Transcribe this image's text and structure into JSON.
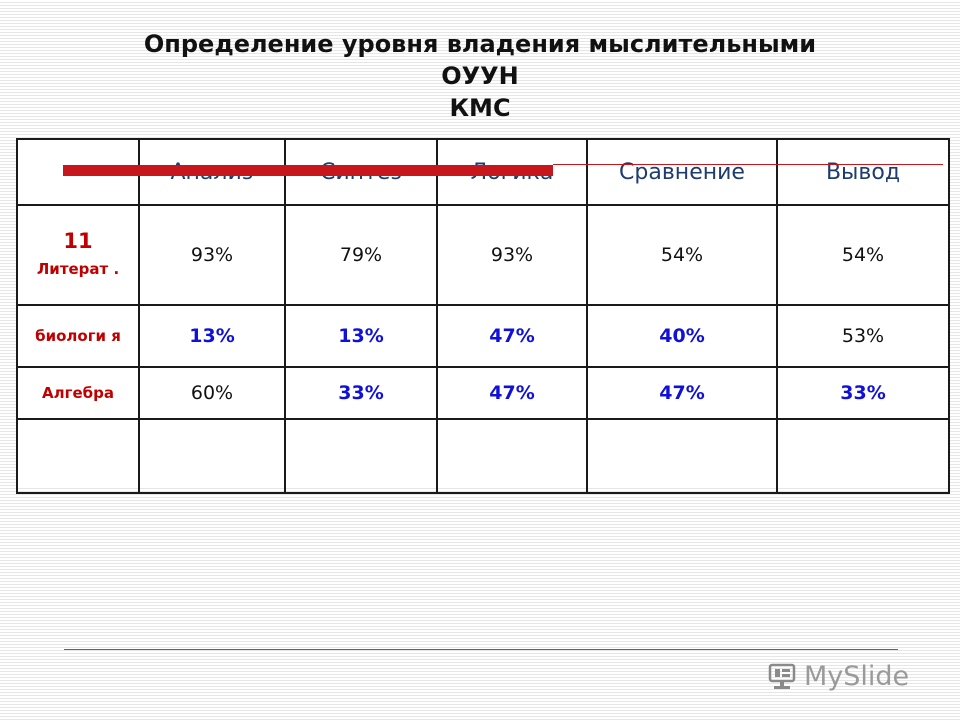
{
  "title": {
    "line1": "Определение уровня владения мыслительными",
    "line2": "ОУУН",
    "line3": "КМС"
  },
  "table": {
    "columns": [
      "Анализ",
      "Синтез",
      "Логика",
      "Сравнение",
      "Вывод"
    ],
    "rows": [
      {
        "label_top": "11",
        "label_bottom": "Литерат .",
        "cells": [
          "93%",
          "79%",
          "93%",
          "54%",
          "54%"
        ]
      },
      {
        "label_top": "",
        "label_bottom": "биологи я",
        "cells": [
          "13%",
          "13%",
          "47%",
          "40%",
          "53%"
        ]
      },
      {
        "label_top": "",
        "label_bottom": "Алгебра",
        "cells": [
          "60%",
          "33%",
          "47%",
          "47%",
          "33%"
        ]
      }
    ]
  },
  "watermark": {
    "text": "MySlide",
    "icon": "myshared-logo-icon"
  },
  "colors": {
    "accent_red": "#c8161d",
    "label_red": "#c00000",
    "header_blue": "#1f3c6e",
    "value_blue": "#1010d8"
  }
}
